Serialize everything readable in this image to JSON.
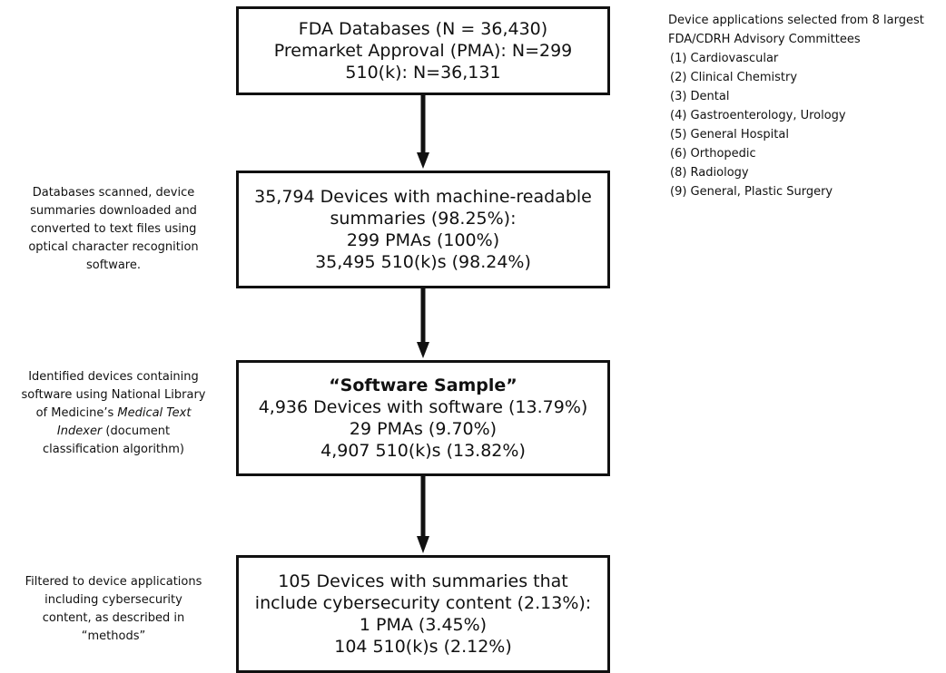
{
  "boxes": {
    "box1": {
      "lines": [
        "FDA Databases (N = 36,430)",
        "Premarket Approval (PMA): N=299",
        "510(k): N=36,131"
      ]
    },
    "box2": {
      "lines": [
        "35,794 Devices with machine-readable",
        "summaries (98.25%):",
        "299 PMAs (100%)",
        "35,495 510(k)s (98.24%)"
      ]
    },
    "box3": {
      "title": "“Software Sample”",
      "lines": [
        "4,936 Devices with software (13.79%)",
        "29 PMAs (9.70%)",
        "4,907 510(k)s (13.82%)"
      ]
    },
    "box4": {
      "lines": [
        "105 Devices with summaries that",
        "include cybersecurity content (2.13%):",
        "1 PMA (3.45%)",
        "104 510(k)s (2.12%)"
      ]
    }
  },
  "notes": {
    "note1": {
      "lines": [
        "Databases scanned, device",
        "summaries downloaded and",
        "converted to text files using",
        "optical character recognition",
        "software."
      ]
    },
    "note2": {
      "line1": "Identified devices containing",
      "line2": "software using National Library",
      "line3_prefix": "of Medicine’s ",
      "line3_italic": "Medical Text",
      "line4_italic": "Indexer",
      "line4_suffix": " (document",
      "line5": "classification algorithm)"
    },
    "note3": {
      "lines": [
        "Filtered to device applications",
        "including cybersecurity",
        "content, as described in",
        "“methods”"
      ]
    }
  },
  "committees": {
    "header_line1": "Device applications selected from 8 largest",
    "header_line2": "FDA/CDRH Advisory Committees",
    "items": [
      "(1) Cardiovascular",
      "(2) Clinical Chemistry",
      "(3) Dental",
      "(4) Gastroenterology, Urology",
      "(5) General Hospital",
      "(6) Orthopedic",
      "(8) Radiology",
      "(9) General, Plastic Surgery"
    ]
  },
  "colors": {
    "stroke": "#111111",
    "background": "#ffffff"
  }
}
